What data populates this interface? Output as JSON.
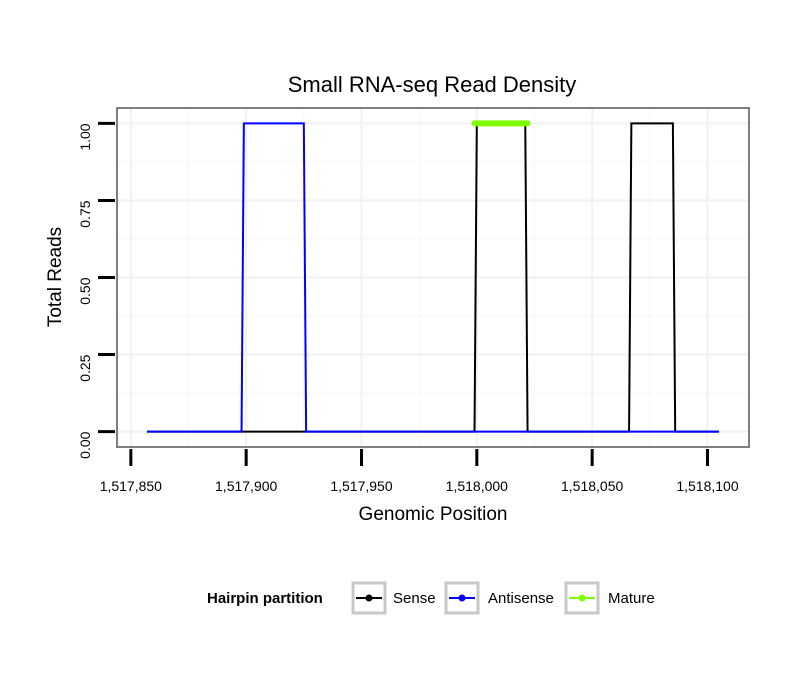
{
  "chart_data": {
    "type": "line",
    "title": "Small RNA-seq Read Density",
    "xlabel": "Genomic Position",
    "ylabel": "Total Reads",
    "xlim": [
      1517844,
      1518118
    ],
    "ylim": [
      -0.05,
      1.05
    ],
    "x_ticks": [
      1517850,
      1517900,
      1517950,
      1518000,
      1518050,
      1518100
    ],
    "x_tick_labels": [
      "1,517,850",
      "1,517,900",
      "1,517,950",
      "1,518,000",
      "1,518,050",
      "1,518,100"
    ],
    "y_ticks": [
      0,
      0.25,
      0.5,
      0.75,
      1.0
    ],
    "y_tick_labels": [
      "0.00",
      "0.25",
      "0.50",
      "0.75",
      "1.00"
    ],
    "grid": true,
    "legend": {
      "title": "Hairpin partition",
      "position": "bottom",
      "entries": [
        {
          "name": "Sense",
          "color": "#000000"
        },
        {
          "name": "Antisense",
          "color": "#0000ff"
        },
        {
          "name": "Mature",
          "color": "#7fff00"
        }
      ]
    },
    "series": [
      {
        "name": "Sense",
        "color": "#000000",
        "x": [
          1517857,
          1517999,
          1518000,
          1518021,
          1518022,
          1518066,
          1518067,
          1518085,
          1518086,
          1518105
        ],
        "values": [
          0,
          0,
          1,
          1,
          0,
          0,
          1,
          1,
          0,
          0
        ]
      },
      {
        "name": "Antisense",
        "color": "#0000ff",
        "x": [
          1517857,
          1517898,
          1517899,
          1517925,
          1517926,
          1518105
        ],
        "values": [
          0,
          0,
          1,
          1,
          0,
          0
        ]
      },
      {
        "name": "Mature",
        "color": "#7fff00",
        "x": [
          1517999,
          1518022
        ],
        "values": [
          1,
          1
        ]
      }
    ]
  }
}
